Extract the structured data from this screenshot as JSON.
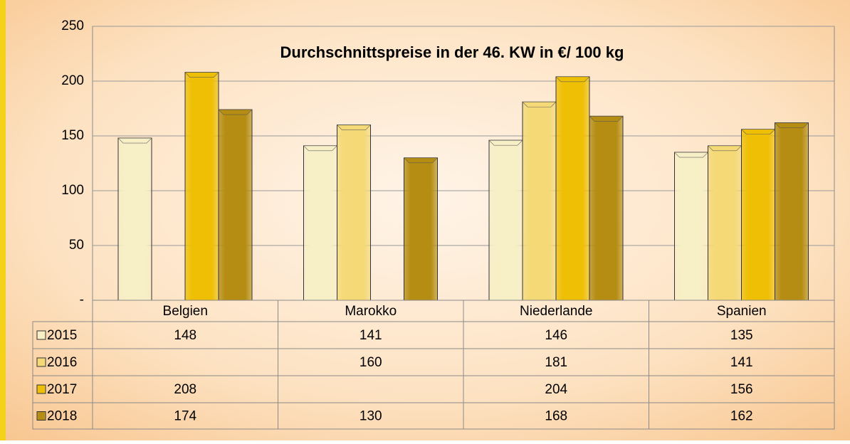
{
  "chart_data": {
    "type": "bar",
    "title": "Durchschnittspreise in der 46. KW in €/ 100 kg",
    "categories": [
      "Belgien",
      "Marokko",
      "Niederlande",
      "Spanien"
    ],
    "series": [
      {
        "name": "2015",
        "color": "#f7efc6",
        "values": [
          148,
          141,
          146,
          135
        ]
      },
      {
        "name": "2016",
        "color": "#f4d976",
        "values": [
          null,
          160,
          181,
          141
        ]
      },
      {
        "name": "2017",
        "color": "#eebf05",
        "values": [
          208,
          null,
          204,
          156
        ]
      },
      {
        "name": "2018",
        "color": "#b48d12",
        "values": [
          174,
          130,
          168,
          162
        ]
      }
    ],
    "ylim": [
      0,
      250
    ],
    "yticks": [
      {
        "value": 0,
        "label": "-"
      },
      50,
      100,
      150,
      200,
      250
    ],
    "grid": true
  }
}
